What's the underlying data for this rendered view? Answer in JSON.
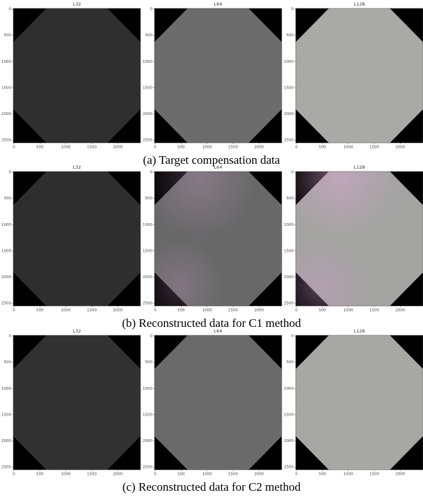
{
  "figure": {
    "x_ticks": [
      0,
      500,
      1000,
      1500,
      2000
    ],
    "y_ticks": [
      0,
      500,
      1000,
      1500,
      2000,
      2500
    ],
    "rows": [
      {
        "caption": "(a) Target compensation data",
        "panels": [
          {
            "title": "L32",
            "color": "#2f2f2f"
          },
          {
            "title": "L64",
            "color": "#6c6c6c"
          },
          {
            "title": "L128",
            "color": "#a9a9a6"
          }
        ]
      },
      {
        "caption": "(b) Reconstructed data for C1 method",
        "panels": [
          {
            "title": "L32",
            "color": "#2e2e2e"
          },
          {
            "title": "L64",
            "color": "#686868"
          },
          {
            "title": "L128",
            "color": "#a3a3a1"
          }
        ]
      },
      {
        "caption": "(c) Reconstructed data for C2 method",
        "panels": [
          {
            "title": "L32",
            "color": "#313131"
          },
          {
            "title": "L64",
            "color": "#6a6a6a"
          },
          {
            "title": "L128",
            "color": "#a7a7a4"
          }
        ]
      }
    ]
  }
}
